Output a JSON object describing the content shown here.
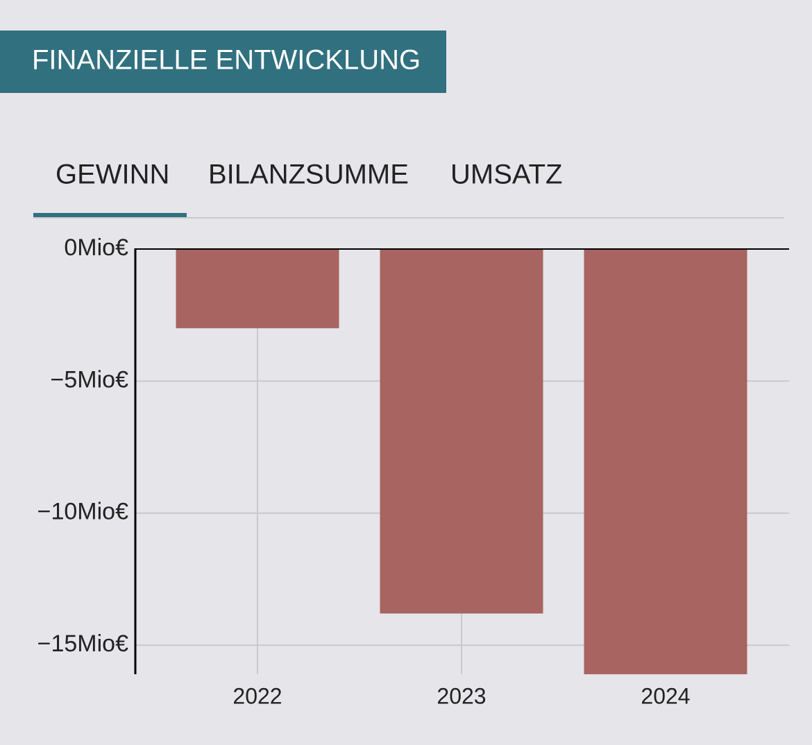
{
  "header": {
    "title": "FINANZIELLE ENTWICKLUNG"
  },
  "tabs": [
    "GEWINN",
    "BILANZSUMME",
    "UMSATZ"
  ],
  "chart_data": {
    "type": "bar",
    "categories": [
      "2022",
      "2023",
      "2024"
    ],
    "values": [
      -3,
      -13.8,
      -16.1
    ],
    "color": "#a86460",
    "ylim": [
      -16.1,
      0
    ],
    "yticks": [
      {
        "value": 0,
        "label": "0Mio€"
      },
      {
        "value": -5,
        "label": "−5Mio€"
      },
      {
        "value": -10,
        "label": "−10Mio€"
      },
      {
        "value": -15,
        "label": "−15Mio€"
      }
    ],
    "grid": true
  }
}
